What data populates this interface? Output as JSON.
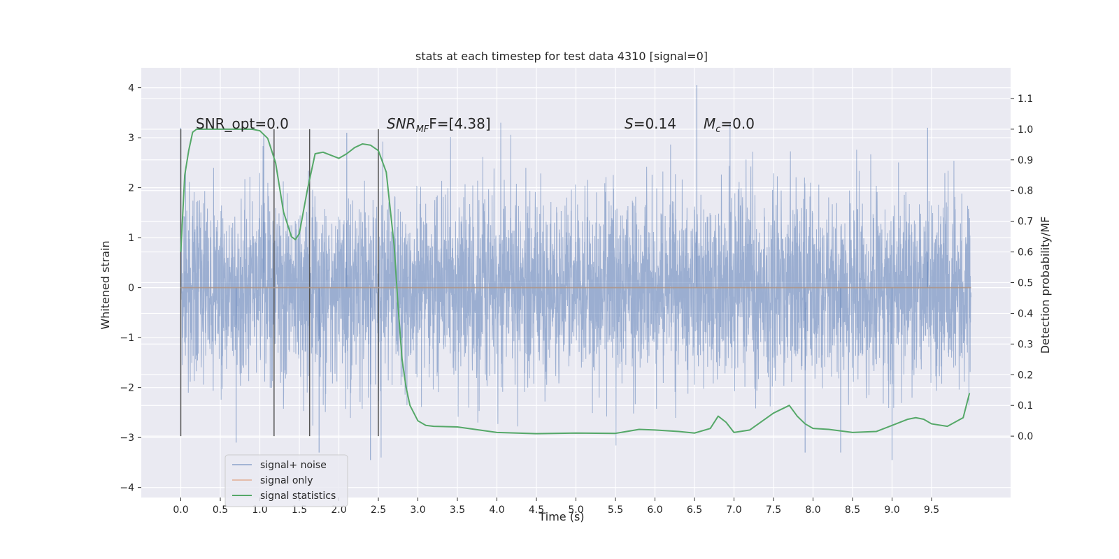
{
  "chart_data": {
    "type": "line",
    "title": "stats at each timestep for test data 4310 [signal=0]",
    "xlabel": "Time (s)",
    "ylabel": "Whitened strain",
    "y2label": "Detection probability/MF",
    "xlim": [
      -0.5,
      10.5
    ],
    "ylim": [
      -4.2,
      4.4
    ],
    "y2lim": [
      -0.2,
      1.2
    ],
    "x_ticks": [
      0.0,
      0.5,
      1.0,
      1.5,
      2.0,
      2.5,
      3.0,
      3.5,
      4.0,
      4.5,
      5.0,
      5.5,
      6.0,
      6.5,
      7.0,
      7.5,
      8.0,
      8.5,
      9.0,
      9.5
    ],
    "x_tick_labels": [
      "0.0",
      "0.5",
      "1.0",
      "1.5",
      "2.0",
      "2.5",
      "3.0",
      "3.5",
      "4.0",
      "4.5",
      "5.0",
      "5.5",
      "6.0",
      "6.5",
      "7.0",
      "7.5",
      "8.0",
      "8.5",
      "9.0",
      "9.5"
    ],
    "y_ticks": [
      -4,
      -3,
      -2,
      -1,
      0,
      1,
      2,
      3,
      4
    ],
    "y_tick_labels": [
      "−4",
      "−3",
      "−2",
      "−1",
      "0",
      "1",
      "2",
      "3",
      "4"
    ],
    "y2_ticks": [
      0.0,
      0.1,
      0.2,
      0.3,
      0.4,
      0.5,
      0.6,
      0.7,
      0.8,
      0.9,
      1.0,
      1.1
    ],
    "y2_tick_labels": [
      "0.0",
      "0.1",
      "0.2",
      "0.3",
      "0.4",
      "0.5",
      "0.6",
      "0.7",
      "0.8",
      "0.9",
      "1.0",
      "1.1"
    ],
    "grid": true,
    "legend_position": "lower-left",
    "legend": [
      "signal+ noise",
      "signal only",
      "signal statistics"
    ],
    "colors": {
      "noise": "#4c72b0",
      "signal_only": "#dd8452",
      "statistics": "#55a868",
      "markers": "#555555",
      "background": "#eaeaf2"
    },
    "annotations": {
      "snr_opt": "SNR_opt=0.0",
      "snr_mf_label": "SNR",
      "snr_mf_sub": "MF",
      "snr_mf_rest": "F=[4.38]",
      "s_label": "S",
      "s_rest": "=0.14",
      "mc_label": "M",
      "mc_sub": "c",
      "mc_rest": "=0.0"
    },
    "series": [
      {
        "name": "signal+ noise",
        "axis": "left",
        "x_range": [
          0.0,
          10.0
        ],
        "sample_count": 4096,
        "envelope_peak_examples": [
          {
            "x": 0.0,
            "y": 3.2
          },
          {
            "x": 0.7,
            "y": -3.1
          },
          {
            "x": 1.05,
            "y": 3.05
          },
          {
            "x": 1.75,
            "y": -3.3
          },
          {
            "x": 2.1,
            "y": 3.1
          },
          {
            "x": 2.4,
            "y": -3.45
          },
          {
            "x": 6.53,
            "y": 4.05
          },
          {
            "x": 7.9,
            "y": -3.3
          },
          {
            "x": 8.35,
            "y": -3.3
          },
          {
            "x": 9.0,
            "y": -3.45
          },
          {
            "x": 9.45,
            "y": 3.2
          }
        ]
      },
      {
        "name": "signal only",
        "axis": "left",
        "x": [
          0.0,
          10.0
        ],
        "y": [
          0.0,
          0.0
        ]
      },
      {
        "name": "signal statistics",
        "axis": "right",
        "x": [
          0.0,
          0.05,
          0.1,
          0.15,
          0.2,
          0.3,
          0.5,
          0.7,
          0.9,
          1.0,
          1.1,
          1.2,
          1.3,
          1.4,
          1.45,
          1.5,
          1.6,
          1.7,
          1.8,
          1.9,
          2.0,
          2.1,
          2.2,
          2.3,
          2.4,
          2.5,
          2.6,
          2.7,
          2.75,
          2.8,
          2.85,
          2.9,
          3.0,
          3.1,
          3.2,
          3.5,
          4.0,
          4.5,
          5.0,
          5.5,
          5.8,
          6.0,
          6.3,
          6.5,
          6.7,
          6.8,
          6.9,
          7.0,
          7.2,
          7.5,
          7.7,
          7.8,
          7.9,
          8.0,
          8.2,
          8.5,
          8.8,
          9.0,
          9.2,
          9.3,
          9.4,
          9.5,
          9.7,
          9.9,
          9.98
        ],
        "y": [
          0.6,
          0.85,
          0.93,
          0.99,
          1.0,
          1.0,
          1.0,
          1.0,
          1.0,
          0.995,
          0.97,
          0.89,
          0.73,
          0.65,
          0.64,
          0.66,
          0.8,
          0.92,
          0.925,
          0.915,
          0.905,
          0.92,
          0.94,
          0.952,
          0.948,
          0.93,
          0.86,
          0.62,
          0.42,
          0.25,
          0.16,
          0.1,
          0.05,
          0.035,
          0.032,
          0.03,
          0.012,
          0.008,
          0.01,
          0.009,
          0.022,
          0.02,
          0.015,
          0.01,
          0.025,
          0.065,
          0.045,
          0.012,
          0.02,
          0.075,
          0.1,
          0.065,
          0.04,
          0.025,
          0.022,
          0.012,
          0.015,
          0.035,
          0.055,
          0.06,
          0.055,
          0.04,
          0.032,
          0.06,
          0.14
        ]
      }
    ],
    "marker_lines": {
      "axis": "right",
      "positions": [
        0.0,
        1.18,
        1.63,
        2.5
      ],
      "y_range": [
        0.0,
        1.0
      ]
    }
  }
}
